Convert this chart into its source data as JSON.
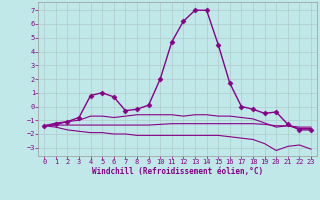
{
  "xlabel": "Windchill (Refroidissement éolien,°C)",
  "bg_color": "#c0e8e8",
  "grid_color": "#b0cccc",
  "line_color": "#880088",
  "x_ticks": [
    0,
    1,
    2,
    3,
    4,
    5,
    6,
    7,
    8,
    9,
    10,
    11,
    12,
    13,
    14,
    15,
    16,
    17,
    18,
    19,
    20,
    21,
    22,
    23
  ],
  "y_ticks": [
    -3,
    -2,
    -1,
    0,
    1,
    2,
    3,
    4,
    5,
    6,
    7
  ],
  "xlim": [
    -0.5,
    23.5
  ],
  "ylim": [
    -3.6,
    7.6
  ],
  "series": [
    {
      "x": [
        0,
        1,
        2,
        3,
        4,
        5,
        6,
        7,
        8,
        9,
        10,
        11,
        12,
        13,
        14,
        15,
        16,
        17,
        18,
        19,
        20,
        21,
        22,
        23
      ],
      "y": [
        -1.4,
        -1.3,
        -1.1,
        -0.8,
        0.8,
        1.0,
        0.7,
        -0.3,
        -0.2,
        0.1,
        2.0,
        4.7,
        6.2,
        7.0,
        7.0,
        4.5,
        1.7,
        0.0,
        -0.2,
        -0.5,
        -0.4,
        -1.3,
        -1.7,
        -1.7
      ],
      "marker": "D",
      "ms": 2.5,
      "lw": 1.0
    },
    {
      "x": [
        0,
        1,
        2,
        3,
        4,
        5,
        6,
        7,
        8,
        9,
        10,
        11,
        12,
        13,
        14,
        15,
        16,
        17,
        18,
        19,
        20,
        21,
        22,
        23
      ],
      "y": [
        -1.4,
        -1.2,
        -1.1,
        -1.0,
        -0.7,
        -0.7,
        -0.8,
        -0.7,
        -0.6,
        -0.6,
        -0.6,
        -0.6,
        -0.7,
        -0.6,
        -0.6,
        -0.7,
        -0.7,
        -0.8,
        -0.9,
        -1.2,
        -1.5,
        -1.4,
        -1.6,
        -1.6
      ],
      "marker": null,
      "ms": 0,
      "lw": 0.8
    },
    {
      "x": [
        0,
        1,
        2,
        3,
        4,
        5,
        6,
        7,
        8,
        9,
        10,
        11,
        12,
        13,
        14,
        15,
        16,
        17,
        18,
        19,
        20,
        21,
        22,
        23
      ],
      "y": [
        -1.4,
        -1.35,
        -1.35,
        -1.35,
        -1.35,
        -1.35,
        -1.35,
        -1.35,
        -1.35,
        -1.35,
        -1.3,
        -1.25,
        -1.25,
        -1.25,
        -1.25,
        -1.25,
        -1.25,
        -1.25,
        -1.25,
        -1.3,
        -1.4,
        -1.4,
        -1.5,
        -1.5
      ],
      "marker": null,
      "ms": 0,
      "lw": 0.8
    },
    {
      "x": [
        0,
        1,
        2,
        3,
        4,
        5,
        6,
        7,
        8,
        9,
        10,
        11,
        12,
        13,
        14,
        15,
        16,
        17,
        18,
        19,
        20,
        21,
        22,
        23
      ],
      "y": [
        -1.4,
        -1.5,
        -1.7,
        -1.8,
        -1.9,
        -1.9,
        -2.0,
        -2.0,
        -2.1,
        -2.1,
        -2.1,
        -2.1,
        -2.1,
        -2.1,
        -2.1,
        -2.1,
        -2.2,
        -2.3,
        -2.4,
        -2.7,
        -3.2,
        -2.9,
        -2.8,
        -3.1
      ],
      "marker": null,
      "ms": 0,
      "lw": 0.8
    }
  ]
}
